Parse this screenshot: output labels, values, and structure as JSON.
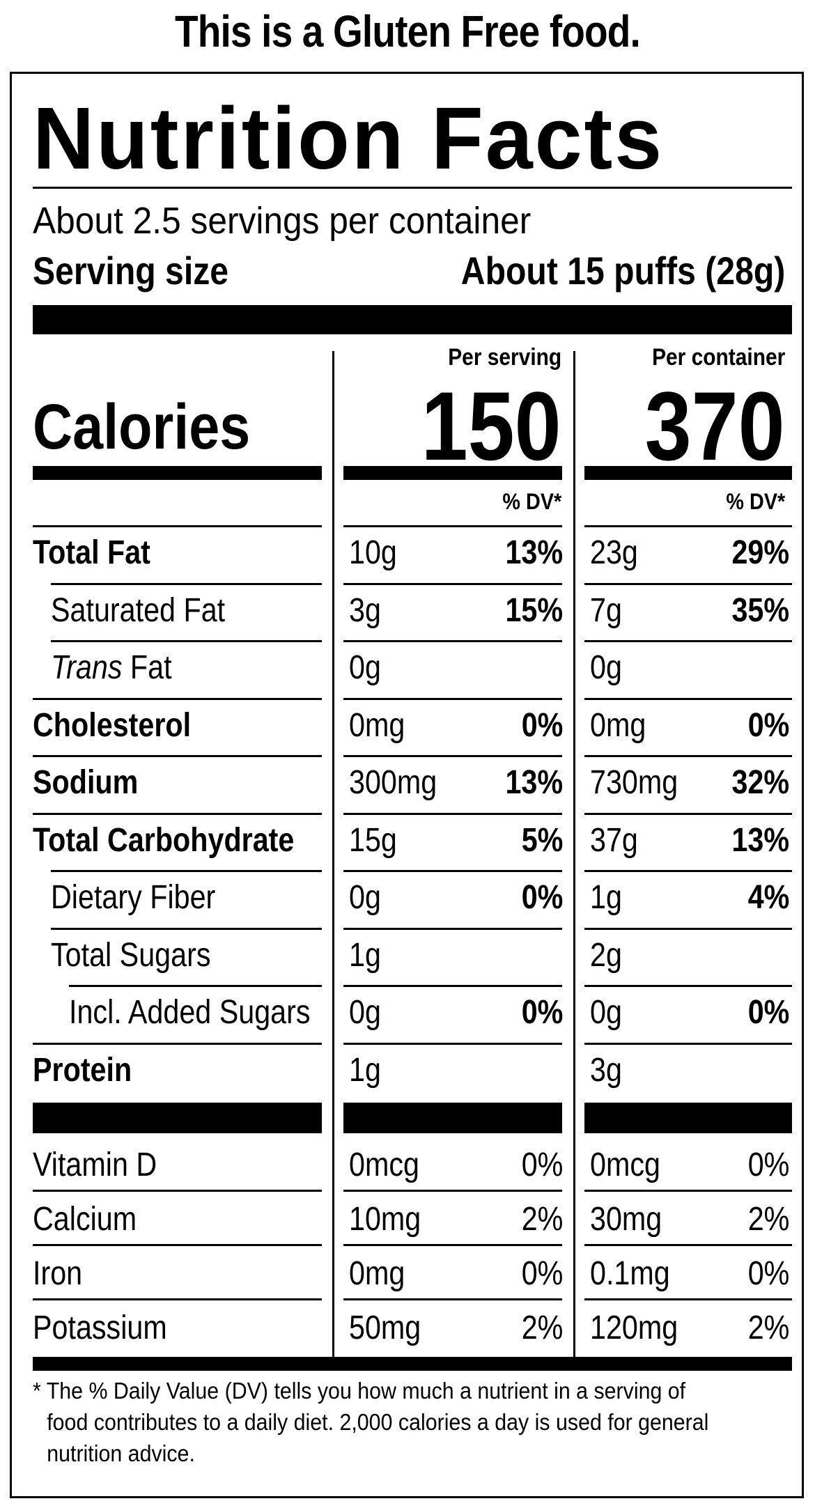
{
  "header": {
    "text": "This is a Gluten Free food."
  },
  "label": {
    "title": "Nutrition Facts",
    "servings_per_container": "About 2.5 servings per container",
    "serving_size_label": "Serving size",
    "serving_size_value": "About 15 puffs (28g)",
    "columns": {
      "per_serving": "Per serving",
      "per_container": "Per container"
    },
    "calories": {
      "label": "Calories",
      "per_serving": "150",
      "per_container": "370"
    },
    "dv_header": "% DV*",
    "nutrients": [
      {
        "name": "Total Fat",
        "serving_amt": "10g",
        "serving_dv": "13%",
        "container_amt": "23g",
        "container_dv": "29%"
      },
      {
        "name": "Saturated Fat",
        "serving_amt": "3g",
        "serving_dv": "15%",
        "container_amt": "7g",
        "container_dv": "35%"
      },
      {
        "name_italic": "Trans",
        "name_rest": " Fat",
        "serving_amt": "0g",
        "serving_dv": "",
        "container_amt": "0g",
        "container_dv": ""
      },
      {
        "name": "Cholesterol",
        "serving_amt": "0mg",
        "serving_dv": "0%",
        "container_amt": "0mg",
        "container_dv": "0%"
      },
      {
        "name": "Sodium",
        "serving_amt": "300mg",
        "serving_dv": "13%",
        "container_amt": "730mg",
        "container_dv": "32%"
      },
      {
        "name": "Total Carbohydrate",
        "serving_amt": "15g",
        "serving_dv": "5%",
        "container_amt": "37g",
        "container_dv": "13%"
      },
      {
        "name": "Dietary Fiber",
        "serving_amt": "0g",
        "serving_dv": "0%",
        "container_amt": "1g",
        "container_dv": "4%"
      },
      {
        "name": "Total Sugars",
        "serving_amt": "1g",
        "serving_dv": "",
        "container_amt": "2g",
        "container_dv": ""
      },
      {
        "name": "Incl. Added Sugars",
        "serving_amt": "0g",
        "serving_dv": "0%",
        "container_amt": "0g",
        "container_dv": "0%"
      },
      {
        "name": "Protein",
        "serving_amt": "1g",
        "serving_dv": "",
        "container_amt": "3g",
        "container_dv": ""
      }
    ],
    "vitamins": [
      {
        "name": "Vitamin D",
        "serving_amt": "0mcg",
        "serving_dv": "0%",
        "container_amt": "0mcg",
        "container_dv": "0%"
      },
      {
        "name": "Calcium",
        "serving_amt": "10mg",
        "serving_dv": "2%",
        "container_amt": "30mg",
        "container_dv": "2%"
      },
      {
        "name": "Iron",
        "serving_amt": "0mg",
        "serving_dv": "0%",
        "container_amt": "0.1mg",
        "container_dv": "0%"
      },
      {
        "name": "Potassium",
        "serving_amt": "50mg",
        "serving_dv": "2%",
        "container_amt": "120mg",
        "container_dv": "2%"
      }
    ],
    "footnote_line1": "* The % Daily Value (DV) tells you how much a nutrient in a serving of",
    "footnote_line2": "food contributes to a daily diet. 2,000 calories a day is used for general",
    "footnote_line3": "nutrition advice."
  }
}
